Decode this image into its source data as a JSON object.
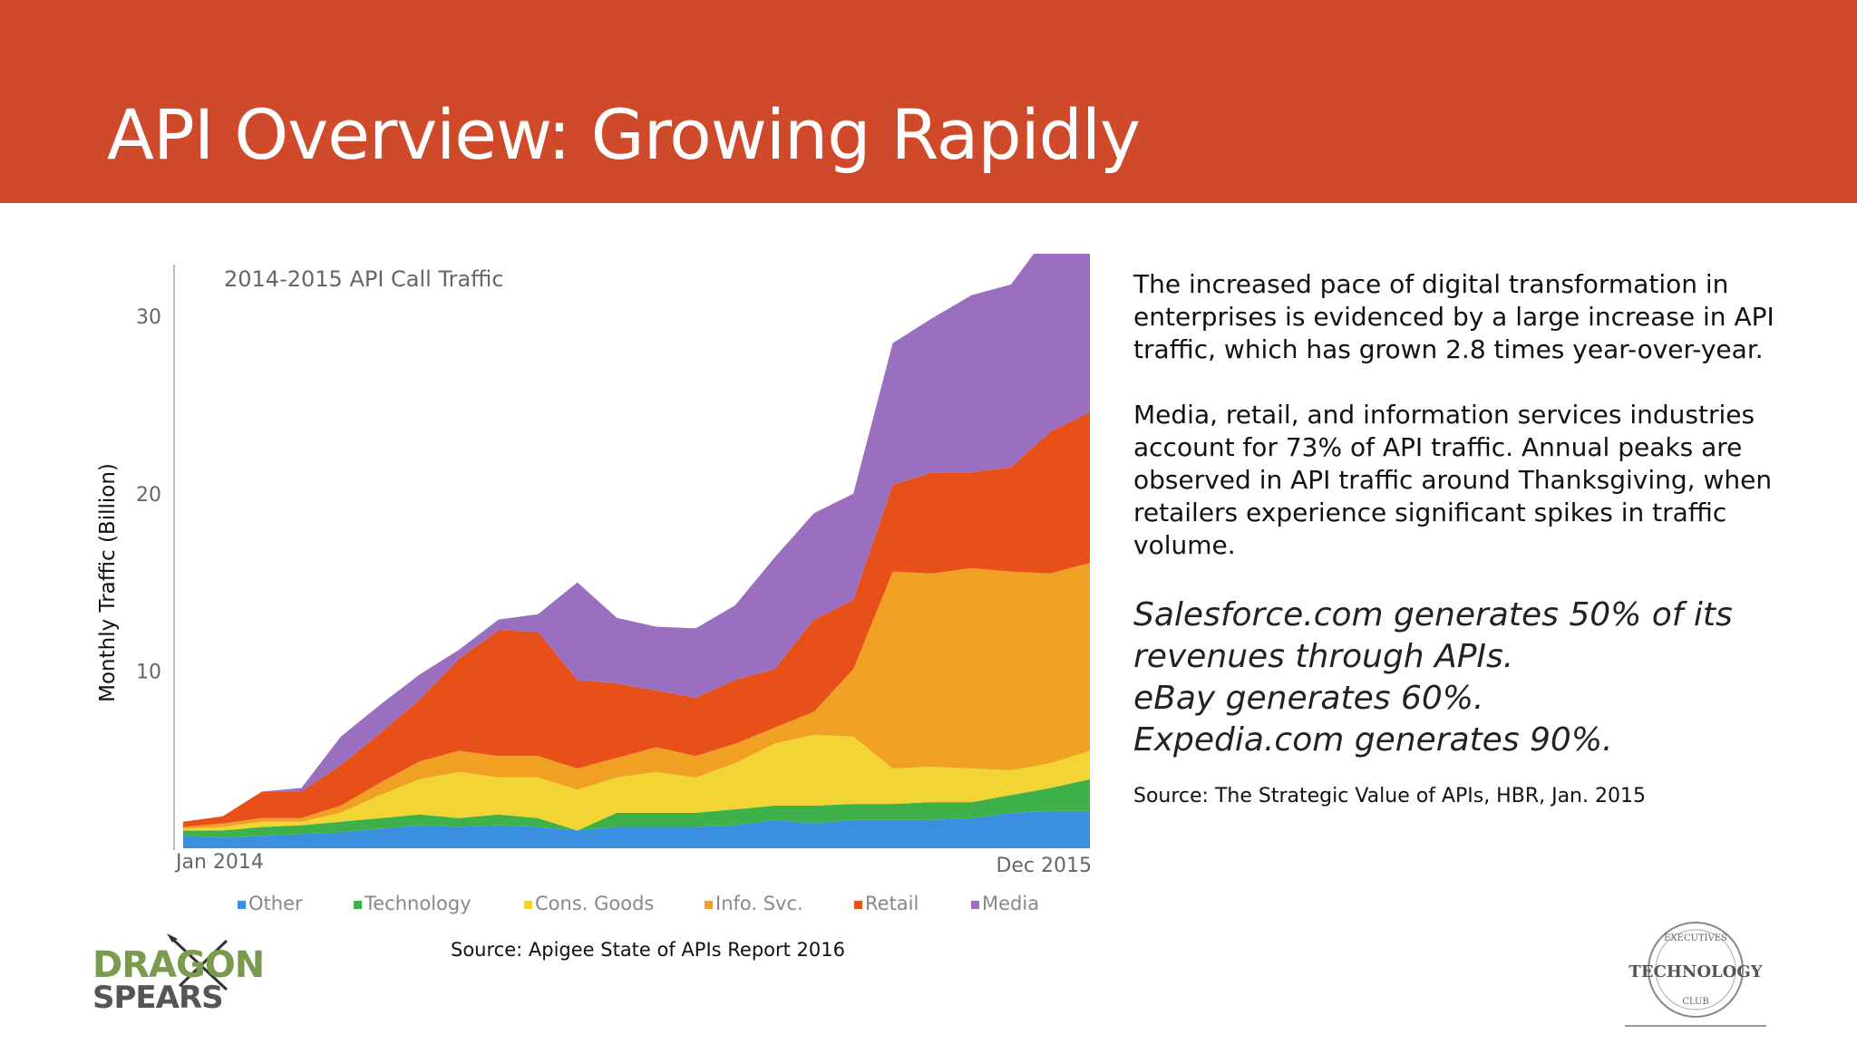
{
  "slide": {
    "title": "API Overview: Growing Rapidly"
  },
  "body": {
    "paragraph1": "The increased pace of digital transformation in enterprises is evidenced by a large increase in API traffic, which has grown 2.8 times year-over-year.",
    "paragraph2": "Media, retail, and information services industries account for 73% of API traffic. Annual peaks are observed in API traffic around Thanksgiving, when retailers experience significant spikes in traffic volume.",
    "quotes": [
      "Salesforce.com generates 50% of its",
      "revenues through APIs.",
      "eBay generates 60%.",
      "Expedia.com generates 90%."
    ],
    "source": "Source: The Strategic Value of APIs, HBR, Jan. 2015"
  },
  "chart_source": "Source: Apigee State of APIs Report 2016",
  "logos": {
    "left": {
      "line1": "DRAGON",
      "line2": "SPEARS"
    },
    "right": {
      "top": "EXECUTIVES",
      "main": "TECHNOLOGY",
      "bottom": "CLUB"
    }
  },
  "colors": {
    "header": "#cf4a2b",
    "series": [
      "#3b8fe0",
      "#3fb14a",
      "#f2d535",
      "#f0a023",
      "#e8501a",
      "#9b6fc0"
    ]
  },
  "chart_data": {
    "type": "area",
    "stacked": true,
    "title": "2014-2015 API Call Traffic",
    "xlabel": "",
    "ylabel": "Monthly Traffic (Billion)",
    "xticks": [
      "Jan 2014",
      "Dec 2015"
    ],
    "yticks": [
      "10",
      "20",
      "30"
    ],
    "x": [
      "2014-01",
      "2014-02",
      "2014-03",
      "2014-04",
      "2014-05",
      "2014-06",
      "2014-07",
      "2014-08",
      "2014-09",
      "2014-10",
      "2014-11",
      "2014-12",
      "2015-01",
      "2015-02",
      "2015-03",
      "2015-04",
      "2015-05",
      "2015-06",
      "2015-07",
      "2015-08",
      "2015-09",
      "2015-10",
      "2015-11",
      "2015-12"
    ],
    "series": [
      {
        "name": "Other",
        "values": [
          0.7,
          0.6,
          0.7,
          0.8,
          0.9,
          1.1,
          1.3,
          1.2,
          1.3,
          1.2,
          1.0,
          1.2,
          1.2,
          1.2,
          1.3,
          1.6,
          1.4,
          1.6,
          1.6,
          1.6,
          1.7,
          2.0,
          2.1,
          2.1
        ]
      },
      {
        "name": "Technology",
        "values": [
          0.3,
          0.4,
          0.5,
          0.5,
          0.6,
          0.6,
          0.6,
          0.5,
          0.6,
          0.5,
          0.0,
          0.8,
          0.8,
          0.8,
          0.9,
          0.8,
          1.0,
          0.9,
          0.9,
          1.0,
          0.9,
          1.0,
          1.3,
          1.8
        ]
      },
      {
        "name": "Cons. Goods",
        "values": [
          0.1,
          0.2,
          0.3,
          0.2,
          0.5,
          1.3,
          2.0,
          2.6,
          2.1,
          2.3,
          2.3,
          2.0,
          2.3,
          2.0,
          2.6,
          3.5,
          4.0,
          3.8,
          2.0,
          2.0,
          1.9,
          1.4,
          1.4,
          1.6
        ]
      },
      {
        "name": "Info. Svc.",
        "values": [
          0.1,
          0.2,
          0.2,
          0.2,
          0.4,
          0.7,
          1.0,
          1.2,
          1.2,
          1.2,
          1.2,
          1.1,
          1.4,
          1.2,
          1.1,
          0.9,
          1.3,
          3.8,
          11.1,
          10.9,
          11.3,
          11.2,
          10.7,
          10.6
        ]
      },
      {
        "name": "Retail",
        "values": [
          0.3,
          0.4,
          1.5,
          1.5,
          2.3,
          2.8,
          3.5,
          5.2,
          7.1,
          7.0,
          5.0,
          4.2,
          3.2,
          3.3,
          3.6,
          3.3,
          5.2,
          3.9,
          4.9,
          5.7,
          5.4,
          5.9,
          8.0,
          8.5
        ]
      },
      {
        "name": "Media",
        "values": [
          0.0,
          0.0,
          0.0,
          0.2,
          1.6,
          1.6,
          1.4,
          0.5,
          0.6,
          1.0,
          5.5,
          3.7,
          3.6,
          3.9,
          4.2,
          6.3,
          6.0,
          6.0,
          8.0,
          8.7,
          10.0,
          10.3,
          11.3,
          10.6
        ]
      }
    ],
    "ylim": [
      0,
      32
    ],
    "legend_position": "bottom",
    "grid": false
  }
}
